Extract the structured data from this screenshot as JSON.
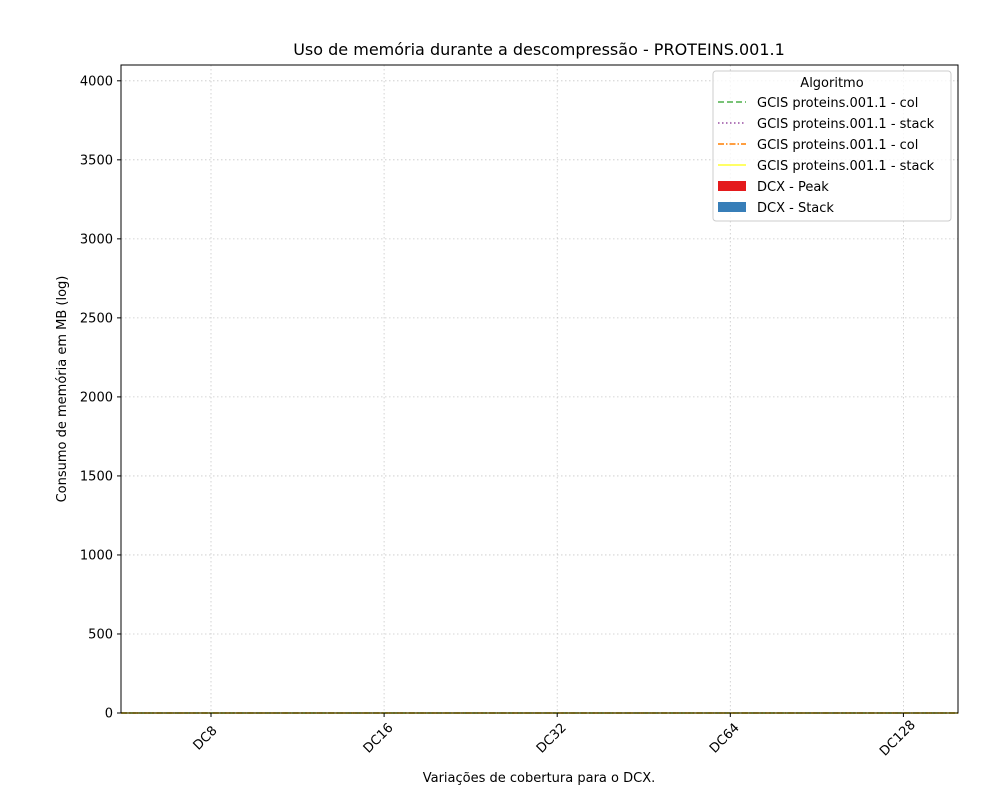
{
  "chart_data": {
    "type": "bar",
    "title": "Uso de memória durante a descompressão -  PROTEINS.001.1",
    "xlabel": "Variações de cobertura para o DCX.",
    "ylabel": "Consumo de memória em MB (log)",
    "categories": [
      "DC8",
      "DC16",
      "DC32",
      "DC64",
      "DC128"
    ],
    "ylim": [
      0,
      4100
    ],
    "yticks": [
      0,
      500,
      1000,
      1500,
      2000,
      2500,
      3000,
      3500,
      4000
    ],
    "grid": true,
    "legend_position": "top-right",
    "legend_title": "Algoritmo",
    "bar_series": [
      {
        "name": "DCX - Peak",
        "color": "#e41a1c",
        "values": [
          0,
          0,
          0,
          0,
          0
        ]
      },
      {
        "name": "DCX - Stack",
        "color": "#377eb8",
        "values": [
          0,
          0,
          0,
          0,
          0
        ]
      }
    ],
    "line_series": [
      {
        "name": "GCIS proteins.001.1 - col",
        "color": "#4daf4a",
        "style": "dashed",
        "value": 0
      },
      {
        "name": "GCIS proteins.001.1 - stack",
        "color": "#984ea3",
        "style": "dotted",
        "value": 0
      },
      {
        "name": "GCIS proteins.001.1 - col",
        "color": "#ff7f00",
        "style": "dashdot",
        "value": 0
      },
      {
        "name": "GCIS proteins.001.1 - stack",
        "color": "#ffff33",
        "style": "solid",
        "value": 0
      }
    ]
  }
}
